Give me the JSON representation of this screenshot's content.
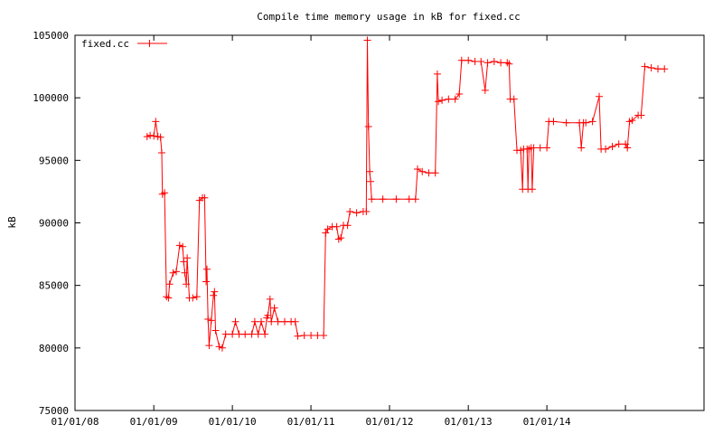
{
  "chart_data": {
    "type": "line",
    "title": "Compile time memory usage in kB for fixed.cc",
    "ylabel": "kB",
    "xlabel": "",
    "ylim": [
      75000,
      105000
    ],
    "yticks": [
      75000,
      80000,
      85000,
      90000,
      95000,
      100000,
      105000
    ],
    "xticks": [
      "01/01/08",
      "01/01/09",
      "01/01/10",
      "01/01/11",
      "01/01/12",
      "01/01/13",
      "01/01/14"
    ],
    "xlim": [
      "2008-01-01",
      "2016-01-01"
    ],
    "grid": false,
    "legend": "top-left",
    "series": [
      {
        "name": "fixed.cc",
        "color": "#ff0000",
        "points": [
          [
            "2008-12-01",
            96900
          ],
          [
            "2008-12-15",
            97000
          ],
          [
            "2009-01-01",
            96950
          ],
          [
            "2009-01-10",
            98100
          ],
          [
            "2009-01-20",
            96900
          ],
          [
            "2009-02-01",
            96850
          ],
          [
            "2009-02-07",
            95600
          ],
          [
            "2009-02-10",
            92300
          ],
          [
            "2009-02-20",
            92400
          ],
          [
            "2009-03-01",
            84100
          ],
          [
            "2009-03-10",
            84000
          ],
          [
            "2009-03-15",
            85100
          ],
          [
            "2009-04-01",
            86000
          ],
          [
            "2009-04-15",
            86100
          ],
          [
            "2009-05-01",
            88200
          ],
          [
            "2009-05-15",
            88100
          ],
          [
            "2009-05-20",
            86900
          ],
          [
            "2009-05-25",
            86000
          ],
          [
            "2009-06-01",
            85100
          ],
          [
            "2009-06-05",
            87200
          ],
          [
            "2009-06-15",
            84000
          ],
          [
            "2009-07-01",
            84000
          ],
          [
            "2009-07-20",
            84100
          ],
          [
            "2009-08-01",
            91800
          ],
          [
            "2009-08-15",
            92000
          ],
          [
            "2009-08-25",
            92000
          ],
          [
            "2009-09-01",
            85300
          ],
          [
            "2009-09-05",
            86300
          ],
          [
            "2009-09-10",
            82300
          ],
          [
            "2009-09-15",
            80200
          ],
          [
            "2009-09-25",
            82200
          ],
          [
            "2009-10-05",
            84200
          ],
          [
            "2009-10-10",
            84500
          ],
          [
            "2009-10-15",
            81400
          ],
          [
            "2009-11-01",
            80100
          ],
          [
            "2009-11-15",
            80000
          ],
          [
            "2009-12-01",
            81100
          ],
          [
            "2010-01-01",
            81100
          ],
          [
            "2010-01-15",
            82100
          ],
          [
            "2010-02-01",
            81100
          ],
          [
            "2010-03-01",
            81100
          ],
          [
            "2010-04-01",
            81100
          ],
          [
            "2010-04-15",
            82100
          ],
          [
            "2010-05-01",
            81100
          ],
          [
            "2010-05-15",
            82100
          ],
          [
            "2010-06-01",
            81100
          ],
          [
            "2010-06-10",
            82400
          ],
          [
            "2010-06-15",
            82600
          ],
          [
            "2010-06-25",
            83900
          ],
          [
            "2010-07-01",
            82100
          ],
          [
            "2010-07-15",
            83200
          ],
          [
            "2010-08-01",
            82100
          ],
          [
            "2010-09-01",
            82100
          ],
          [
            "2010-10-01",
            82100
          ],
          [
            "2010-10-20",
            82100
          ],
          [
            "2010-11-01",
            80950
          ],
          [
            "2010-12-01",
            81000
          ],
          [
            "2011-01-01",
            81000
          ],
          [
            "2011-02-01",
            81000
          ],
          [
            "2011-03-01",
            81000
          ],
          [
            "2011-03-10",
            89200
          ],
          [
            "2011-03-20",
            89500
          ],
          [
            "2011-04-10",
            89700
          ],
          [
            "2011-05-01",
            89700
          ],
          [
            "2011-05-10",
            88700
          ],
          [
            "2011-05-20",
            88800
          ],
          [
            "2011-06-01",
            89800
          ],
          [
            "2011-06-20",
            89800
          ],
          [
            "2011-07-01",
            90900
          ],
          [
            "2011-08-01",
            90800
          ],
          [
            "2011-09-01",
            90900
          ],
          [
            "2011-09-15",
            90900
          ],
          [
            "2011-09-20",
            104600
          ],
          [
            "2011-09-25",
            97700
          ],
          [
            "2011-10-01",
            94100
          ],
          [
            "2011-10-05",
            93300
          ],
          [
            "2011-10-10",
            91900
          ],
          [
            "2011-12-01",
            91900
          ],
          [
            "2012-02-01",
            91900
          ],
          [
            "2012-04-01",
            91900
          ],
          [
            "2012-05-01",
            91900
          ],
          [
            "2012-05-10",
            94300
          ],
          [
            "2012-06-01",
            94100
          ],
          [
            "2012-07-01",
            94000
          ],
          [
            "2012-08-01",
            94000
          ],
          [
            "2012-08-10",
            101900
          ],
          [
            "2012-08-15",
            99700
          ],
          [
            "2012-09-01",
            99800
          ],
          [
            "2012-10-01",
            99900
          ],
          [
            "2012-11-01",
            99900
          ],
          [
            "2012-11-20",
            100300
          ],
          [
            "2012-12-01",
            103000
          ],
          [
            "2013-01-01",
            103000
          ],
          [
            "2013-02-01",
            102900
          ],
          [
            "2013-03-01",
            102900
          ],
          [
            "2013-03-20",
            100600
          ],
          [
            "2013-04-01",
            102800
          ],
          [
            "2013-05-01",
            102900
          ],
          [
            "2013-06-01",
            102800
          ],
          [
            "2013-07-01",
            102800
          ],
          [
            "2013-07-10",
            102700
          ],
          [
            "2013-07-15",
            99900
          ],
          [
            "2013-08-01",
            99900
          ],
          [
            "2013-08-15",
            95800
          ],
          [
            "2013-09-01",
            95800
          ],
          [
            "2013-09-10",
            92700
          ],
          [
            "2013-09-15",
            95900
          ],
          [
            "2013-10-01",
            95900
          ],
          [
            "2013-10-05",
            92700
          ],
          [
            "2013-10-10",
            95900
          ],
          [
            "2013-10-20",
            96000
          ],
          [
            "2013-10-25",
            92700
          ],
          [
            "2013-11-01",
            96000
          ],
          [
            "2013-12-01",
            96000
          ],
          [
            "2014-01-01",
            96000
          ],
          [
            "2014-01-10",
            98100
          ],
          [
            "2014-02-01",
            98100
          ],
          [
            "2014-04-01",
            98000
          ],
          [
            "2014-06-01",
            98000
          ],
          [
            "2014-06-10",
            96000
          ],
          [
            "2014-06-20",
            98000
          ],
          [
            "2014-07-01",
            98000
          ],
          [
            "2014-08-01",
            98100
          ],
          [
            "2014-09-01",
            100100
          ],
          [
            "2014-09-10",
            95900
          ],
          [
            "2014-10-01",
            95900
          ],
          [
            "2014-11-01",
            96100
          ],
          [
            "2014-12-01",
            96300
          ],
          [
            "2015-01-01",
            96300
          ],
          [
            "2015-01-10",
            96000
          ],
          [
            "2015-01-20",
            98100
          ],
          [
            "2015-02-01",
            98200
          ],
          [
            "2015-03-01",
            98600
          ],
          [
            "2015-03-15",
            98600
          ],
          [
            "2015-04-01",
            102500
          ],
          [
            "2015-05-01",
            102400
          ],
          [
            "2015-06-01",
            102300
          ],
          [
            "2015-07-01",
            102300
          ]
        ]
      }
    ]
  }
}
